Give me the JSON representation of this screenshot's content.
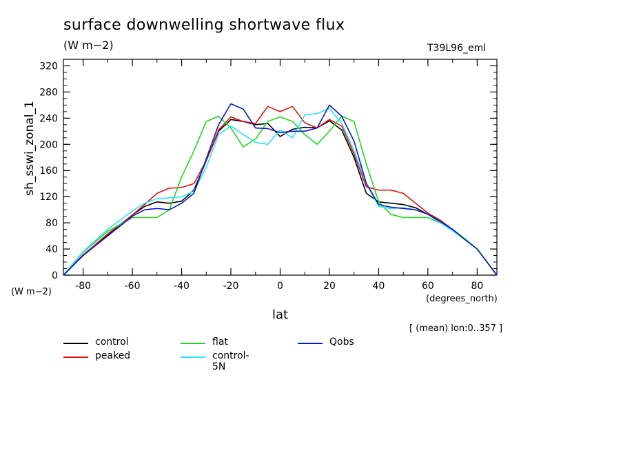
{
  "chart_data": {
    "type": "line",
    "title": "surface downwelling shortwave flux",
    "subtitle": "(W m−2)",
    "model_label": "T39L96_eml",
    "ylabel": "sh_sswi_zonal_1",
    "y_unit": "(W m−2)",
    "xlabel": "lat",
    "x_unit": "(degrees_north)",
    "note": "[ (mean) lon:0..357 ]",
    "xlim": [
      -88,
      88
    ],
    "ylim": [
      0,
      330
    ],
    "xticks": [
      -80,
      -60,
      -40,
      -20,
      0,
      20,
      40,
      60,
      80
    ],
    "yticks": [
      0,
      40,
      80,
      120,
      160,
      200,
      240,
      280,
      320
    ],
    "x": [
      -88,
      -80,
      -70,
      -60,
      -55,
      -50,
      -45,
      -40,
      -35,
      -30,
      -25,
      -20,
      -15,
      -10,
      -5,
      0,
      5,
      10,
      15,
      20,
      25,
      30,
      35,
      40,
      45,
      50,
      55,
      60,
      65,
      70,
      75,
      80,
      88
    ],
    "series": [
      {
        "name": "control",
        "color": "#000000",
        "values": [
          0,
          30,
          62,
          92,
          105,
          112,
          110,
          113,
          130,
          175,
          220,
          238,
          235,
          230,
          232,
          212,
          223,
          226,
          225,
          236,
          222,
          180,
          125,
          112,
          110,
          108,
          103,
          93,
          83,
          70,
          55,
          40,
          0
        ]
      },
      {
        "name": "peaked",
        "color": "#e11010",
        "values": [
          0,
          31,
          63,
          92,
          108,
          125,
          133,
          134,
          140,
          175,
          222,
          242,
          235,
          232,
          258,
          250,
          258,
          233,
          225,
          238,
          228,
          185,
          135,
          130,
          130,
          125,
          110,
          95,
          84,
          70,
          55,
          40,
          0
        ]
      },
      {
        "name": "flat",
        "color": "#1ed81e",
        "values": [
          0,
          35,
          67,
          88,
          88,
          88,
          100,
          150,
          190,
          235,
          243,
          225,
          196,
          208,
          235,
          242,
          235,
          215,
          200,
          220,
          243,
          235,
          170,
          112,
          93,
          88,
          88,
          88,
          80,
          68,
          54,
          40,
          0
        ]
      },
      {
        "name": "control-5N",
        "color": "#22e6f0",
        "values": [
          0,
          36,
          70,
          98,
          110,
          117,
          118,
          120,
          128,
          165,
          215,
          228,
          215,
          203,
          200,
          222,
          210,
          245,
          247,
          255,
          232,
          190,
          140,
          105,
          102,
          103,
          100,
          93,
          80,
          68,
          55,
          40,
          0
        ]
      },
      {
        "name": "Qobs",
        "color": "#0a18c8",
        "values": [
          0,
          30,
          60,
          90,
          100,
          102,
          100,
          110,
          125,
          178,
          230,
          262,
          254,
          225,
          224,
          218,
          220,
          220,
          225,
          260,
          243,
          205,
          140,
          108,
          104,
          102,
          100,
          93,
          82,
          70,
          55,
          40,
          0
        ]
      }
    ]
  }
}
